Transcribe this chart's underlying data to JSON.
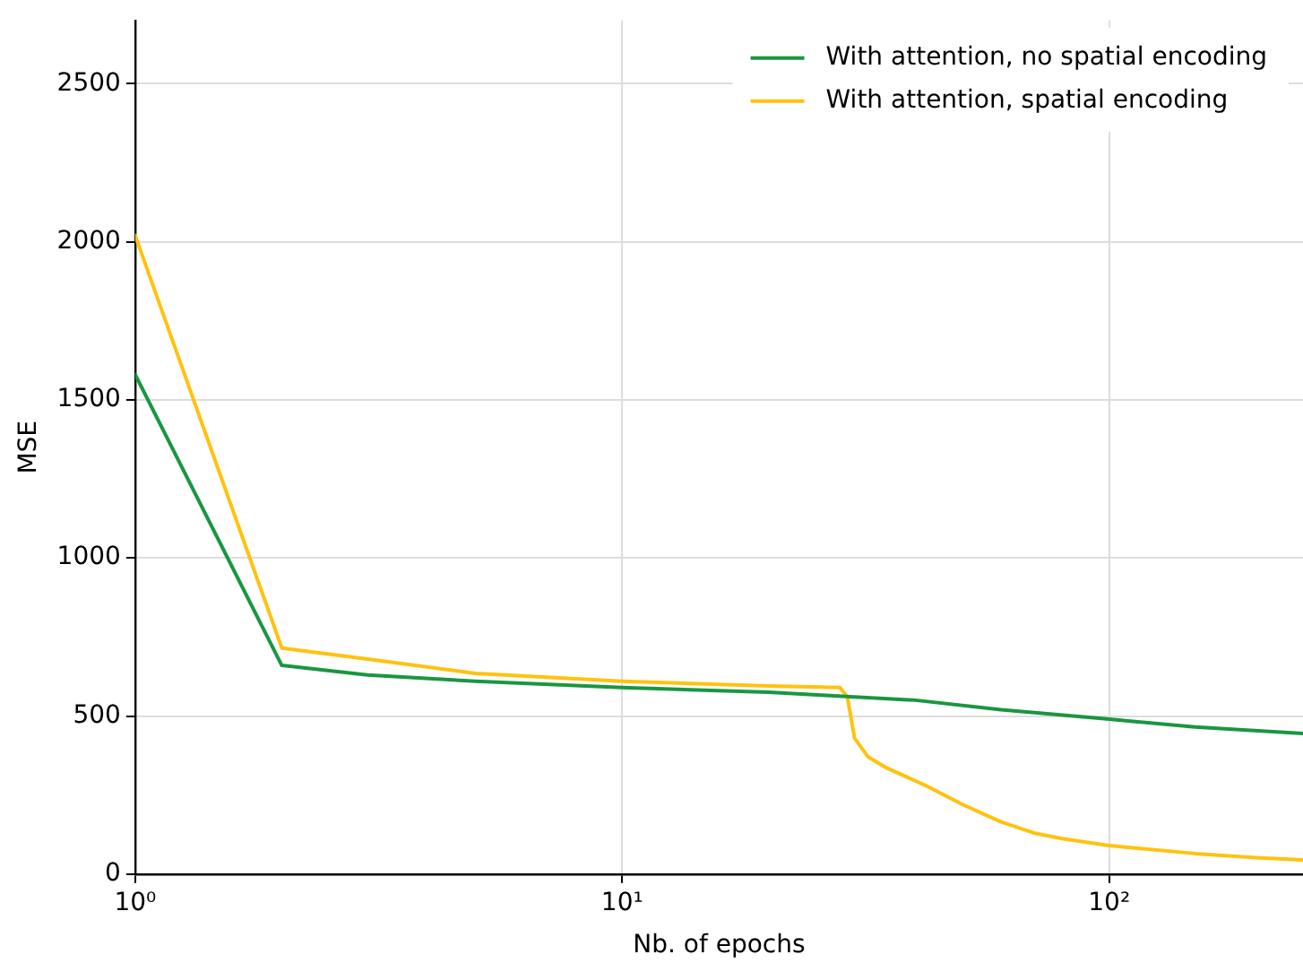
{
  "chart_data": {
    "type": "line",
    "xlabel": "Nb. of epochs",
    "ylabel": "MSE",
    "log": "x",
    "grid": true,
    "legend": "top right",
    "marker": "none",
    "line_style": "solid",
    "xlim": [
      1,
      250
    ],
    "xticks": [
      {
        "value": 1,
        "label": "10⁰"
      },
      {
        "value": 10,
        "label": "10¹"
      },
      {
        "value": 100,
        "label": "10²"
      }
    ],
    "ylim": [
      0,
      2700
    ],
    "yticks": [
      0,
      500,
      1000,
      1500,
      2000,
      2500
    ],
    "series": [
      {
        "name": "With attention, no spatial encoding",
        "color": "#1a9641",
        "x": [
          1,
          2,
          3,
          5,
          10,
          20,
          30,
          40,
          60,
          100,
          150,
          250
        ],
        "values": [
          1580,
          660,
          630,
          610,
          590,
          575,
          560,
          550,
          520,
          490,
          465,
          445
        ]
      },
      {
        "name": "With attention, spatial encoding",
        "color": "#ffc20e",
        "x": [
          1,
          2,
          3,
          5,
          10,
          20,
          28,
          29,
          30,
          32,
          35,
          42,
          50,
          60,
          70,
          80,
          100,
          150,
          200,
          250
        ],
        "values": [
          2020,
          715,
          680,
          635,
          610,
          595,
          590,
          560,
          430,
          370,
          335,
          280,
          220,
          165,
          130,
          112,
          90,
          65,
          52,
          45
        ]
      }
    ]
  }
}
